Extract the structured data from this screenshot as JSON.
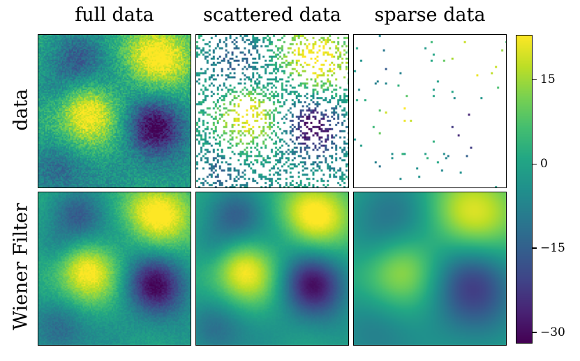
{
  "chart_data": {
    "type": "heatmap",
    "column_titles": [
      "full data",
      "scattered data",
      "sparse data"
    ],
    "row_labels": [
      "data",
      "Wiener Filter"
    ],
    "colormap": "viridis",
    "colorbar": {
      "range": [
        -32,
        23
      ],
      "ticks": [
        15,
        0,
        -15,
        -30
      ],
      "tick_labels": [
        "15",
        "0",
        "−15",
        "−30"
      ]
    },
    "panels": [
      {
        "row": "data",
        "column": "full data",
        "coverage": 1.0,
        "smoothness": "noisy"
      },
      {
        "row": "data",
        "column": "scattered data",
        "coverage": 0.3,
        "smoothness": "noisy"
      },
      {
        "row": "data",
        "column": "sparse data",
        "coverage": 0.01,
        "smoothness": "noisy"
      },
      {
        "row": "Wiener Filter",
        "column": "full data",
        "coverage": 1.0,
        "smoothness": "slightly smoothed"
      },
      {
        "row": "Wiener Filter",
        "column": "scattered data",
        "coverage": 1.0,
        "smoothness": "smoothed"
      },
      {
        "row": "Wiener Filter",
        "column": "sparse data",
        "coverage": 1.0,
        "smoothness": "strongly smoothed"
      }
    ],
    "field_features": [
      {
        "location": "top-right",
        "value": 20
      },
      {
        "location": "bottom-right",
        "value": -30
      },
      {
        "location": "center-left",
        "value": 13
      },
      {
        "location": "top-left",
        "value": -20
      },
      {
        "location": "bottom-left",
        "value": -10
      }
    ]
  }
}
